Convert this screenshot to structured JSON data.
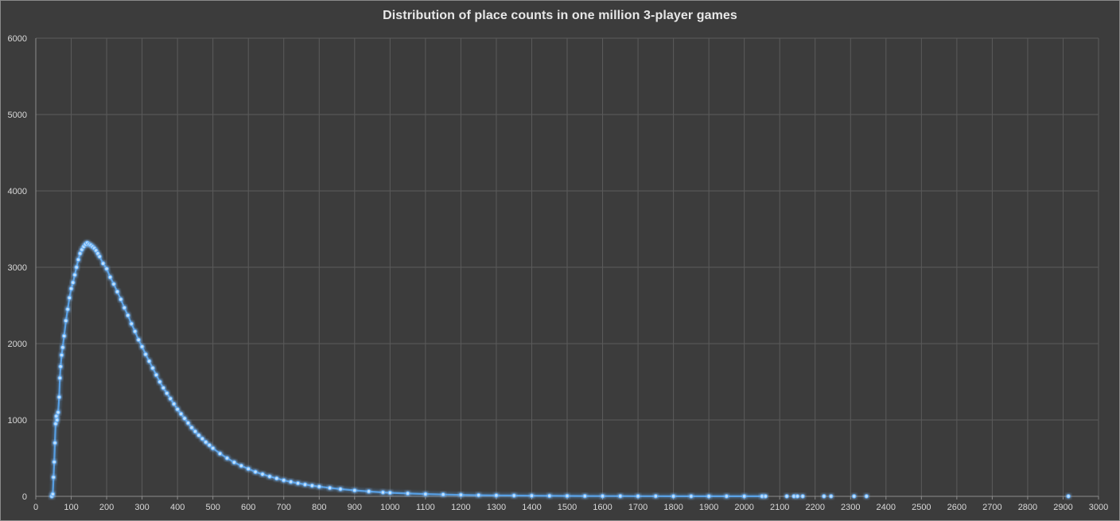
{
  "chart_data": {
    "type": "scatter",
    "title": "Distribution of place counts in one million 3-player games",
    "xlabel": "",
    "ylabel": "",
    "xlim": [
      0,
      3000
    ],
    "ylim": [
      0,
      6000
    ],
    "x_ticks": [
      0,
      100,
      200,
      300,
      400,
      500,
      600,
      700,
      800,
      900,
      1000,
      1100,
      1200,
      1300,
      1400,
      1500,
      1600,
      1700,
      1800,
      1900,
      2000,
      2100,
      2200,
      2300,
      2400,
      2500,
      2600,
      2700,
      2800,
      2900,
      3000
    ],
    "y_ticks": [
      0,
      1000,
      2000,
      3000,
      4000,
      5000,
      6000
    ],
    "grid": true,
    "legend": "none",
    "series_color": "#5aa9f5",
    "points": [
      [
        45,
        0
      ],
      [
        48,
        30
      ],
      [
        50,
        250
      ],
      [
        52,
        450
      ],
      [
        54,
        700
      ],
      [
        56,
        950
      ],
      [
        58,
        1050
      ],
      [
        60,
        1000
      ],
      [
        63,
        1100
      ],
      [
        66,
        1300
      ],
      [
        68,
        1550
      ],
      [
        70,
        1700
      ],
      [
        73,
        1850
      ],
      [
        76,
        1950
      ],
      [
        80,
        2100
      ],
      [
        85,
        2300
      ],
      [
        90,
        2450
      ],
      [
        95,
        2600
      ],
      [
        100,
        2720
      ],
      [
        105,
        2800
      ],
      [
        110,
        2900
      ],
      [
        115,
        3000
      ],
      [
        120,
        3100
      ],
      [
        125,
        3180
      ],
      [
        130,
        3230
      ],
      [
        135,
        3270
      ],
      [
        140,
        3300
      ],
      [
        145,
        3320
      ],
      [
        150,
        3300
      ],
      [
        155,
        3290
      ],
      [
        160,
        3270
      ],
      [
        165,
        3250
      ],
      [
        170,
        3220
      ],
      [
        175,
        3180
      ],
      [
        180,
        3140
      ],
      [
        190,
        3050
      ],
      [
        200,
        2980
      ],
      [
        210,
        2870
      ],
      [
        220,
        2780
      ],
      [
        230,
        2680
      ],
      [
        240,
        2580
      ],
      [
        250,
        2470
      ],
      [
        260,
        2370
      ],
      [
        270,
        2260
      ],
      [
        280,
        2160
      ],
      [
        290,
        2050
      ],
      [
        300,
        1960
      ],
      [
        310,
        1860
      ],
      [
        320,
        1770
      ],
      [
        330,
        1680
      ],
      [
        340,
        1590
      ],
      [
        350,
        1500
      ],
      [
        360,
        1420
      ],
      [
        370,
        1350
      ],
      [
        380,
        1280
      ],
      [
        390,
        1210
      ],
      [
        400,
        1140
      ],
      [
        410,
        1080
      ],
      [
        420,
        1020
      ],
      [
        430,
        960
      ],
      [
        440,
        900
      ],
      [
        450,
        850
      ],
      [
        460,
        800
      ],
      [
        470,
        755
      ],
      [
        480,
        710
      ],
      [
        490,
        670
      ],
      [
        500,
        630
      ],
      [
        520,
        560
      ],
      [
        540,
        500
      ],
      [
        560,
        445
      ],
      [
        580,
        400
      ],
      [
        600,
        360
      ],
      [
        620,
        320
      ],
      [
        640,
        290
      ],
      [
        660,
        260
      ],
      [
        680,
        235
      ],
      [
        700,
        210
      ],
      [
        720,
        190
      ],
      [
        740,
        172
      ],
      [
        760,
        155
      ],
      [
        780,
        140
      ],
      [
        800,
        127
      ],
      [
        830,
        110
      ],
      [
        860,
        95
      ],
      [
        900,
        78
      ],
      [
        940,
        64
      ],
      [
        980,
        52
      ],
      [
        1000,
        47
      ],
      [
        1050,
        38
      ],
      [
        1100,
        30
      ],
      [
        1150,
        24
      ],
      [
        1200,
        19
      ],
      [
        1250,
        15
      ],
      [
        1300,
        12
      ],
      [
        1350,
        10
      ],
      [
        1400,
        8
      ],
      [
        1450,
        6
      ],
      [
        1500,
        5
      ],
      [
        1550,
        4
      ],
      [
        1600,
        3
      ],
      [
        1650,
        3
      ],
      [
        1700,
        2
      ],
      [
        1750,
        2
      ],
      [
        1800,
        1
      ],
      [
        1850,
        1
      ],
      [
        1900,
        1
      ],
      [
        1950,
        1
      ],
      [
        2000,
        1
      ],
      [
        2050,
        1
      ],
      [
        2060,
        1
      ],
      [
        2120,
        1
      ],
      [
        2140,
        1
      ],
      [
        2150,
        1
      ],
      [
        2165,
        1
      ],
      [
        2225,
        1
      ],
      [
        2245,
        1
      ],
      [
        2310,
        1
      ],
      [
        2345,
        1
      ],
      [
        2915,
        1
      ]
    ]
  }
}
